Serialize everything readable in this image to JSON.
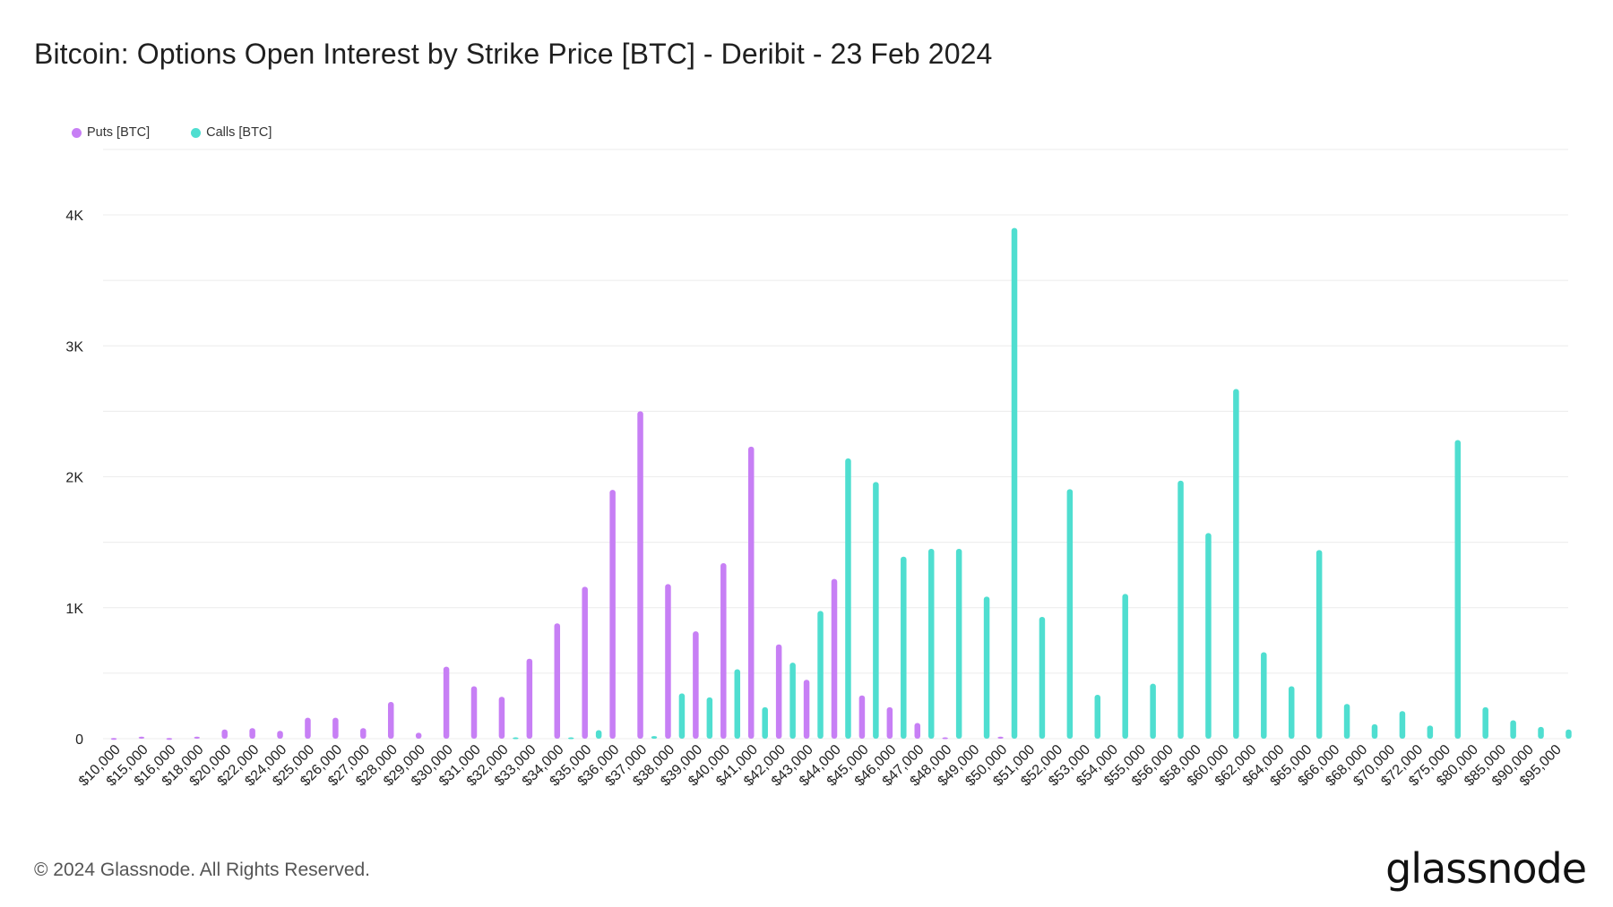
{
  "title": "Bitcoin: Options Open Interest by Strike Price [BTC] - Deribit - 23 Feb 2024",
  "footer": "© 2024 Glassnode. All Rights Reserved.",
  "logo": "glassnode",
  "colors": {
    "puts": "#c77ff5",
    "calls": "#4fded0",
    "grid": "#ececec"
  },
  "chart_data": {
    "type": "bar",
    "title": "Bitcoin: Options Open Interest by Strike Price [BTC] - Deribit - 23 Feb 2024",
    "xlabel": "",
    "ylabel": "",
    "ylim": [
      0,
      4500
    ],
    "yticks": [
      {
        "value": 0,
        "label": "0"
      },
      {
        "value": 1000,
        "label": "1K"
      },
      {
        "value": 2000,
        "label": "2K"
      },
      {
        "value": 3000,
        "label": "3K"
      },
      {
        "value": 4000,
        "label": "4K"
      }
    ],
    "grid": true,
    "legend": "top-left",
    "categories": [
      "$10,000",
      "$15,000",
      "$16,000",
      "$18,000",
      "$20,000",
      "$22,000",
      "$24,000",
      "$25,000",
      "$26,000",
      "$27,000",
      "$28,000",
      "$29,000",
      "$30,000",
      "$31,000",
      "$32,000",
      "$33,000",
      "$34,000",
      "$35,000",
      "$36,000",
      "$37,000",
      "$38,000",
      "$39,000",
      "$40,000",
      "$41,000",
      "$42,000",
      "$43,000",
      "$44,000",
      "$45,000",
      "$46,000",
      "$47,000",
      "$48,000",
      "$49,000",
      "$50,000",
      "$51,000",
      "$52,000",
      "$53,000",
      "$54,000",
      "$55,000",
      "$56,000",
      "$58,000",
      "$60,000",
      "$62,000",
      "$64,000",
      "$65,000",
      "$66,000",
      "$68,000",
      "$70,000",
      "$72,000",
      "$75,000",
      "$80,000",
      "$85,000",
      "$90,000",
      "$95,000"
    ],
    "series": [
      {
        "name": "Puts [BTC]",
        "values": [
          5,
          15,
          5,
          15,
          70,
          80,
          60,
          160,
          160,
          80,
          280,
          45,
          550,
          400,
          320,
          610,
          880,
          1160,
          1900,
          2500,
          1180,
          820,
          1340,
          2230,
          720,
          450,
          1220,
          330,
          240,
          120,
          10,
          0,
          15,
          0,
          0,
          0,
          0,
          0,
          0,
          0,
          0,
          0,
          0,
          0,
          0,
          0,
          0,
          0,
          0,
          0,
          0,
          0,
          0
        ]
      },
      {
        "name": "Calls [BTC]",
        "values": [
          0,
          0,
          0,
          0,
          0,
          0,
          0,
          0,
          0,
          0,
          0,
          0,
          0,
          0,
          10,
          0,
          10,
          65,
          0,
          20,
          345,
          315,
          530,
          240,
          580,
          975,
          2140,
          1960,
          1390,
          1450,
          1450,
          1085,
          3900,
          930,
          1905,
          335,
          1105,
          420,
          1970,
          1570,
          2670,
          660,
          400,
          1440,
          265,
          110,
          210,
          100,
          2280,
          240,
          140,
          90,
          70
        ]
      }
    ]
  }
}
